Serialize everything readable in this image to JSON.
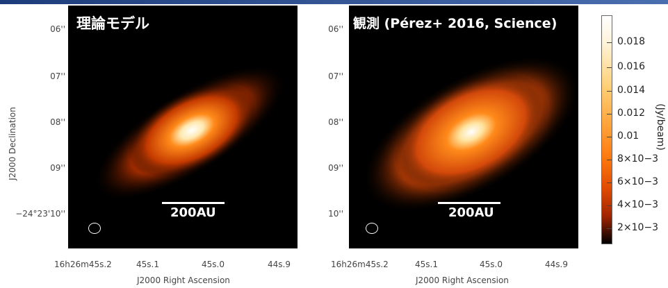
{
  "colors": {
    "top_bar": "#2a4a8a",
    "panel_bg": "#000000",
    "scalebar": "#ffffff"
  },
  "left_panel": {
    "title": "理論モデル",
    "scalebar": "200AU",
    "dec_ticks": [
      "06''",
      "07''",
      "08''",
      "09''",
      "−24°23'10''"
    ],
    "ra_ticks": [
      "16h26m45s.2",
      "45s.1",
      "45s.0",
      "44s.9"
    ],
    "xlabel": "J2000 Right Ascension",
    "ylabel": "J2000 Declination"
  },
  "right_panel": {
    "title": "観測 (Pérez+ 2016, Science)",
    "scalebar": "200AU",
    "dec_ticks": [
      "06''",
      "07''",
      "08''",
      "09''",
      "10''"
    ],
    "ra_ticks": [
      "16h26m45s.2",
      "45s.1",
      "45s.0",
      "44s.9"
    ],
    "xlabel": "J2000 Right Ascension"
  },
  "colorbar": {
    "ticks": [
      "0.018",
      "0.016",
      "0.014",
      "0.012",
      "0.01",
      "8×10−3",
      "6×10−3",
      "4×10−3",
      "2×10−3"
    ],
    "label": "(Jy/beam)"
  }
}
